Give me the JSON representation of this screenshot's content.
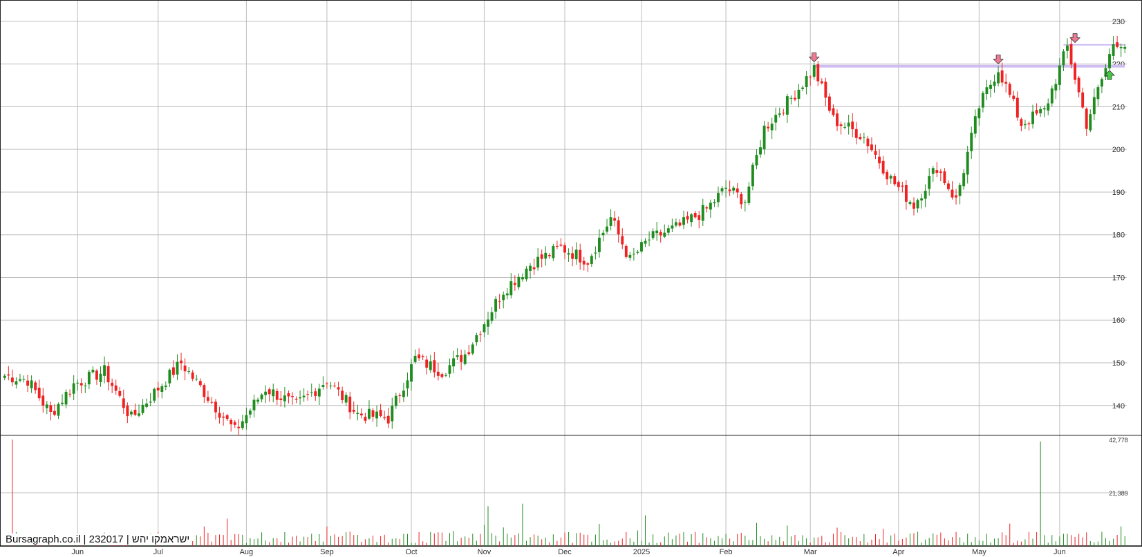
{
  "source_label": "Bursagraph.co.il | 232017 | ישראמקו יהש",
  "colors": {
    "up": "#1f8c1f",
    "down": "#ee2222",
    "grid": "#bdbdbd",
    "axis": "#222222",
    "resistance": "#cfbdf2",
    "arrow_down": "#f07a95",
    "arrow_up": "#44c844"
  },
  "chart_data": [
    {
      "type": "candlestick",
      "title": "",
      "ylim": [
        133,
        235
      ],
      "y_ticks": [
        140,
        150,
        160,
        170,
        180,
        190,
        200,
        210,
        220,
        230
      ],
      "x_ticks": [
        "Jun",
        "Jul",
        "Aug",
        "Sep",
        "Oct",
        "Nov",
        "Dec",
        "2025",
        "Feb",
        "Mar",
        "Apr",
        "May",
        "Jun"
      ],
      "grid": true,
      "anchors": [
        {
          "i": 0,
          "v": 147
        },
        {
          "i": 6,
          "v": 146
        },
        {
          "i": 12,
          "v": 138
        },
        {
          "i": 18,
          "v": 145
        },
        {
          "i": 26,
          "v": 148
        },
        {
          "i": 33,
          "v": 137
        },
        {
          "i": 40,
          "v": 144
        },
        {
          "i": 46,
          "v": 150
        },
        {
          "i": 53,
          "v": 142
        },
        {
          "i": 60,
          "v": 134
        },
        {
          "i": 68,
          "v": 144
        },
        {
          "i": 76,
          "v": 140
        },
        {
          "i": 84,
          "v": 146
        },
        {
          "i": 92,
          "v": 138
        },
        {
          "i": 100,
          "v": 137
        },
        {
          "i": 107,
          "v": 151
        },
        {
          "i": 114,
          "v": 148
        },
        {
          "i": 120,
          "v": 152
        },
        {
          "i": 130,
          "v": 167
        },
        {
          "i": 137,
          "v": 173
        },
        {
          "i": 145,
          "v": 177
        },
        {
          "i": 152,
          "v": 174
        },
        {
          "i": 158,
          "v": 184
        },
        {
          "i": 163,
          "v": 174
        },
        {
          "i": 168,
          "v": 179
        },
        {
          "i": 176,
          "v": 182
        },
        {
          "i": 183,
          "v": 186
        },
        {
          "i": 188,
          "v": 191
        },
        {
          "i": 193,
          "v": 188
        },
        {
          "i": 198,
          "v": 205
        },
        {
          "i": 205,
          "v": 212
        },
        {
          "i": 211,
          "v": 219
        },
        {
          "i": 216,
          "v": 207
        },
        {
          "i": 224,
          "v": 203
        },
        {
          "i": 231,
          "v": 193
        },
        {
          "i": 237,
          "v": 187
        },
        {
          "i": 243,
          "v": 196
        },
        {
          "i": 248,
          "v": 188
        },
        {
          "i": 254,
          "v": 210
        },
        {
          "i": 259,
          "v": 219
        },
        {
          "i": 265,
          "v": 206
        },
        {
          "i": 271,
          "v": 209
        },
        {
          "i": 277,
          "v": 224
        },
        {
          "i": 282,
          "v": 206
        },
        {
          "i": 287,
          "v": 219
        },
        {
          "i": 289,
          "v": 225
        },
        {
          "i": 290,
          "v": 224
        }
      ],
      "resistance_levels": [
        {
          "value": 219.5,
          "from_index": 211,
          "to_index": 292
        },
        {
          "value": 224.5,
          "from_index": 276,
          "to_index": 292
        }
      ],
      "signals": [
        {
          "index": 211,
          "direction": "down",
          "value": 221.5
        },
        {
          "index": 259,
          "direction": "down",
          "value": 221.0
        },
        {
          "index": 279,
          "direction": "down",
          "value": 226.0
        },
        {
          "index": 288,
          "direction": "up",
          "value": 217.5
        }
      ]
    },
    {
      "type": "volume",
      "y_ticks": [
        "21,389",
        "42,778"
      ],
      "ylim": [
        0,
        42778
      ],
      "spikes": [
        {
          "index": 2,
          "value": 42778
        },
        {
          "index": 126,
          "value": 16000
        },
        {
          "index": 135,
          "value": 17000
        },
        {
          "index": 262,
          "value": 9000
        },
        {
          "index": 270,
          "value": 42000
        }
      ]
    }
  ]
}
